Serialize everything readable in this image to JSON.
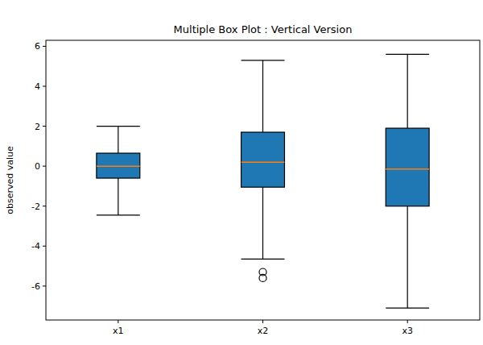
{
  "chart_data": {
    "type": "box",
    "title": "Multiple Box Plot : Vertical Version",
    "y_label": "observed value",
    "categories": [
      "x1",
      "x2",
      "x3"
    ],
    "boxes": [
      {
        "whisker_low": -2.45,
        "q1": -0.6,
        "median": 0.0,
        "q3": 0.65,
        "whisker_high": 2.0,
        "outliers": []
      },
      {
        "whisker_low": -4.65,
        "q1": -1.05,
        "median": 0.2,
        "q3": 1.7,
        "whisker_high": 5.3,
        "outliers": [
          -5.3,
          -5.6
        ]
      },
      {
        "whisker_low": -7.1,
        "q1": -2.0,
        "median": -0.15,
        "q3": 1.9,
        "whisker_high": 5.6,
        "outliers": []
      }
    ],
    "color": "#1f77b4",
    "ylim": [
      -7.7,
      6.3
    ],
    "yticks": [
      -6,
      -4,
      -2,
      0,
      2,
      4,
      6
    ],
    "grid": false
  }
}
